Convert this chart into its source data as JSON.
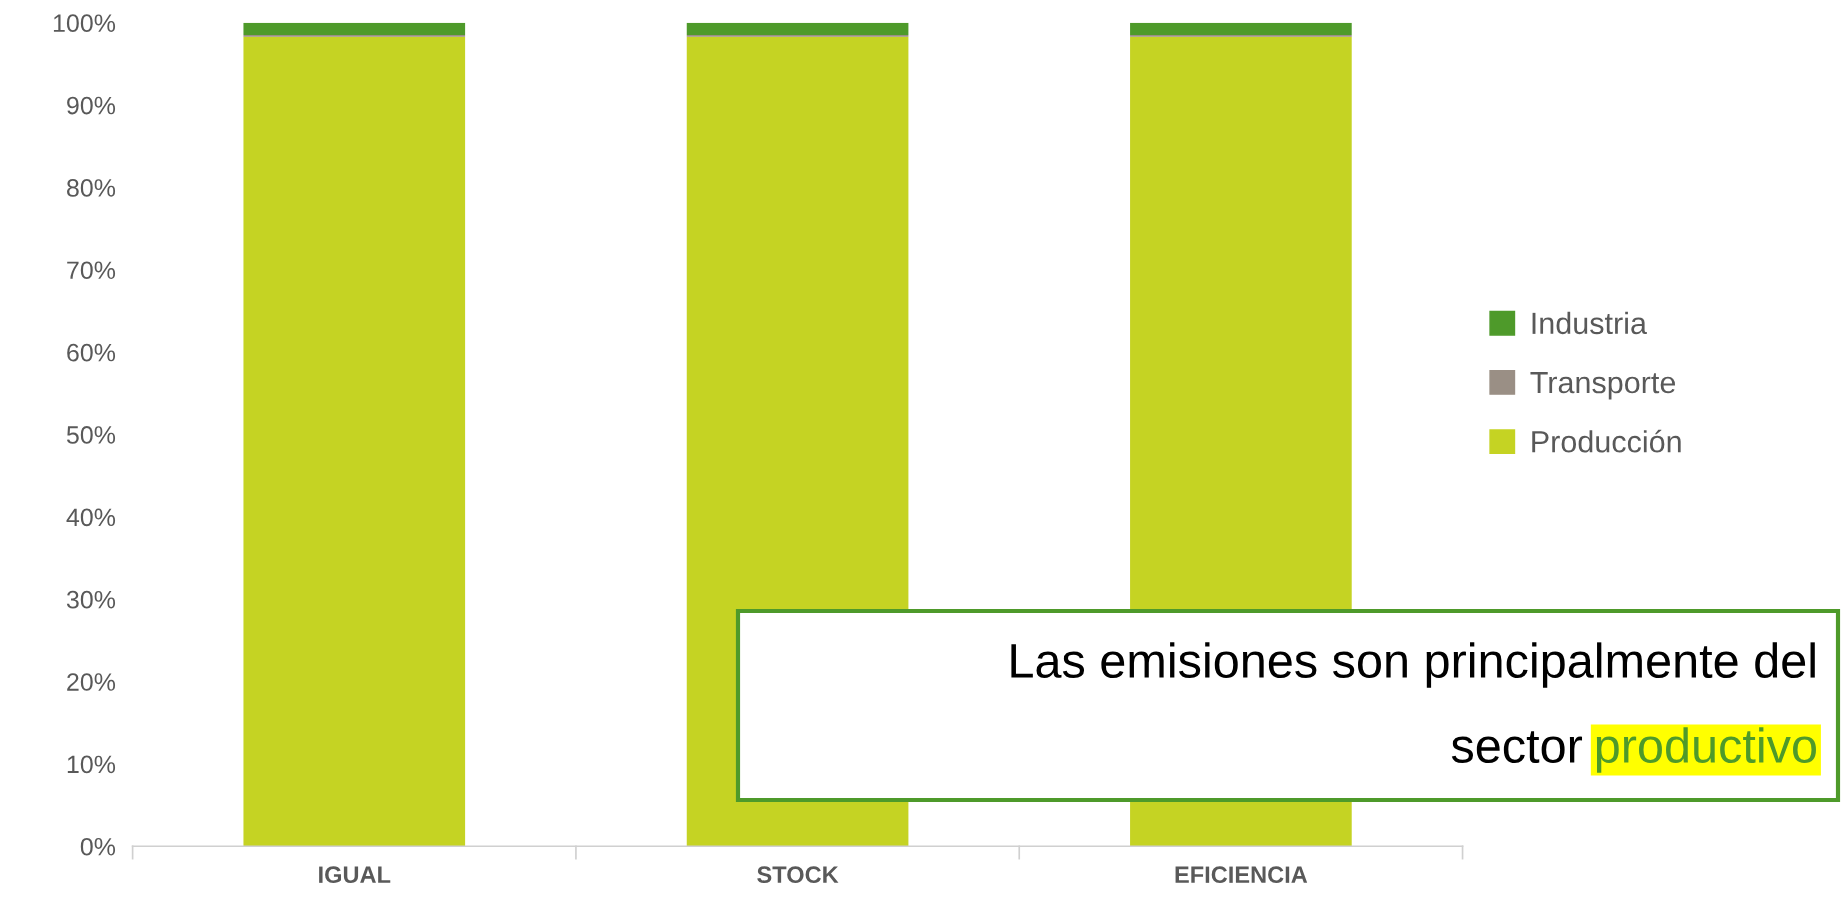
{
  "chart_data": {
    "type": "bar",
    "stacked": true,
    "categories": [
      "IGUAL",
      "STOCK",
      "EFICIENCIA"
    ],
    "series": [
      {
        "name": "Producción",
        "color": "#c5d323",
        "values": [
          98.3,
          98.3,
          98.3
        ]
      },
      {
        "name": "Transporte",
        "color": "#9a8f85",
        "values": [
          0.2,
          0.2,
          0.2
        ]
      },
      {
        "name": "Industria",
        "color": "#4e9a2a",
        "values": [
          1.5,
          1.5,
          1.5
        ]
      }
    ],
    "ylim": [
      0,
      100
    ],
    "yticks": [
      {
        "value": 0,
        "label": "0%"
      },
      {
        "value": 10,
        "label": "10%"
      },
      {
        "value": 20,
        "label": "20%"
      },
      {
        "value": 30,
        "label": "30%"
      },
      {
        "value": 40,
        "label": "40%"
      },
      {
        "value": 50,
        "label": "50%"
      },
      {
        "value": 60,
        "label": "60%"
      },
      {
        "value": 70,
        "label": "70%"
      },
      {
        "value": 80,
        "label": "80%"
      },
      {
        "value": 90,
        "label": "90%"
      },
      {
        "value": 100,
        "label": "100%"
      }
    ],
    "grid": false,
    "legend": "right",
    "annotations": [
      "Las emisiones son principalmente del\nsector productivo"
    ]
  }
}
